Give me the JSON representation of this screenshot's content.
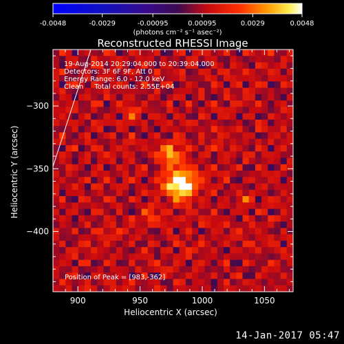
{
  "chart_data": {
    "type": "heatmap",
    "title": "Reconstructed RHESSI Image",
    "xlabel": "Heliocentric X (arcsec)",
    "ylabel": "Heliocentric Y (arcsec)",
    "xlim": [
      880,
      1073
    ],
    "ylim": [
      -448,
      -255
    ],
    "x_ticks": [
      900,
      950,
      1000,
      1050
    ],
    "y_ticks": [
      -300,
      -350,
      -400
    ],
    "colorbar": {
      "ticks": [
        "-0.0048",
        "-0.0029",
        "-0.00095",
        "0.00095",
        "0.0029",
        "0.0048"
      ],
      "min": -0.0048,
      "max": 0.0048,
      "unit_label": "(photons cm⁻² s⁻¹ asec⁻²)",
      "colormap": "RHESSI red-temperature"
    },
    "annotations": [
      "19-Aug-2014 20:29:04.000 to 20:39:04.000",
      "Detectors: 3F 6F 9F, Att 0",
      "Energy Range: 6.0 - 12.0 keV",
      "Clean     Total counts: 2.55E+04"
    ],
    "peak_label": "Position of Peak = [983,-362]",
    "peak": {
      "x": 983,
      "y": -362
    },
    "sources": [
      {
        "x": 983,
        "y": -362,
        "intensity": 0.0048,
        "sigma": 8
      },
      {
        "x": 975,
        "y": -340,
        "intensity": 0.0026,
        "sigma": 6
      },
      {
        "x": 945,
        "y": -305,
        "intensity": 0.0015,
        "sigma": 4
      },
      {
        "x": 960,
        "y": -385,
        "intensity": 0.0014,
        "sigma": 4
      },
      {
        "x": 1035,
        "y": -375,
        "intensity": 0.0012,
        "sigma": 4
      }
    ]
  },
  "footer": {
    "timestamp": "14-Jan-2017 05:47"
  }
}
